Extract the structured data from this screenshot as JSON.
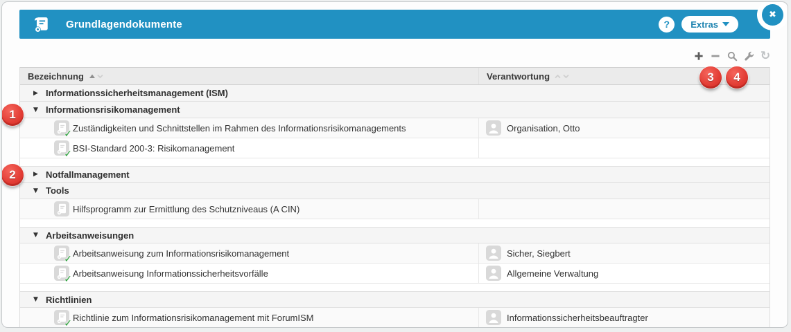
{
  "window": {
    "title": "Grundlagendokumente",
    "help_label": "?",
    "extras_label": "Extras",
    "close_glyph": "✖"
  },
  "icons": {
    "check": "✓",
    "refresh": "↻",
    "expanded": "▼",
    "collapsed": "▶"
  },
  "colors": {
    "header_blue": "#2191c2",
    "badge_red": "#e23c34",
    "check_green": "#2aa13a",
    "icon_gray": "#d9d9d9"
  },
  "annotations": [
    "1",
    "2",
    "3",
    "4"
  ],
  "table": {
    "columns": [
      {
        "label": "Bezeichnung",
        "sort": "asc"
      },
      {
        "label": "Verantwortung",
        "sort": "none"
      }
    ],
    "rows": [
      {
        "type": "group",
        "expanded": false,
        "label": "Informationssicherheitsmanagement (ISM)"
      },
      {
        "type": "group",
        "expanded": true,
        "label": "Informationsrisikomanagement"
      },
      {
        "type": "doc",
        "checked": true,
        "label": "Zuständigkeiten und Schnittstellen im Rahmen des Informationsrisikomanagements",
        "responsible": "Organisation, Otto"
      },
      {
        "type": "doc",
        "checked": true,
        "label": "BSI-Standard 200-3: Risikomanagement",
        "responsible": ""
      },
      {
        "type": "gap"
      },
      {
        "type": "group",
        "expanded": false,
        "label": "Notfallmanagement"
      },
      {
        "type": "group",
        "expanded": true,
        "label": "Tools"
      },
      {
        "type": "doc",
        "checked": false,
        "label": "Hilfsprogramm zur Ermittlung des Schutzniveaus (A CIN)",
        "responsible": ""
      },
      {
        "type": "gap"
      },
      {
        "type": "group",
        "expanded": true,
        "label": "Arbeitsanweisungen"
      },
      {
        "type": "doc",
        "checked": true,
        "label": "Arbeitsanweisung zum Informationsrisikomanagement",
        "responsible": "Sicher, Siegbert"
      },
      {
        "type": "doc",
        "checked": true,
        "label": "Arbeitsanweisung Informationssicherheitsvorfälle",
        "responsible": "Allgemeine Verwaltung"
      },
      {
        "type": "gap"
      },
      {
        "type": "group",
        "expanded": true,
        "label": "Richtlinien"
      },
      {
        "type": "doc",
        "checked": true,
        "label": "Richtlinie zum Informationsrisikomanagement mit ForumISM",
        "responsible": "Informationssicherheitsbeauftragter"
      }
    ]
  }
}
